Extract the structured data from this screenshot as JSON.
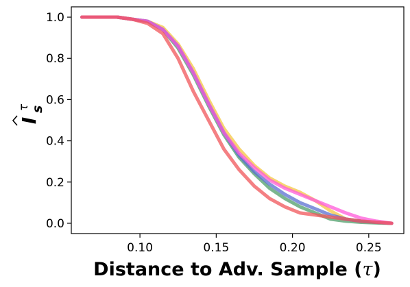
{
  "chart_data": {
    "type": "line",
    "title": "",
    "xlabel": "Distance to Adv. Sample (",
    "xlabel_symbol": "τ",
    "xlabel_close": ")",
    "ylabel_main": "I",
    "ylabel_sub": "s",
    "ylabel_sup": "τ",
    "xlim": [
      0.055,
      0.273
    ],
    "ylim": [
      -0.05,
      1.05
    ],
    "xticks": [
      0.1,
      0.15,
      0.2,
      0.25
    ],
    "xtick_labels": [
      "0.10",
      "0.15",
      "0.20",
      "0.25"
    ],
    "yticks": [
      0.0,
      0.2,
      0.4,
      0.6,
      0.8,
      1.0
    ],
    "ytick_labels": [
      "0.0",
      "0.2",
      "0.4",
      "0.6",
      "0.8",
      "1.0"
    ],
    "grid": false,
    "series": [
      {
        "color": "#f4c542",
        "x": [
          0.062,
          0.085,
          0.095,
          0.105,
          0.115,
          0.125,
          0.135,
          0.145,
          0.155,
          0.165,
          0.175,
          0.185,
          0.195,
          0.205,
          0.215,
          0.225,
          0.235,
          0.245,
          0.255,
          0.265
        ],
        "y": [
          1.0,
          1.0,
          0.99,
          0.98,
          0.95,
          0.87,
          0.75,
          0.6,
          0.46,
          0.36,
          0.28,
          0.22,
          0.18,
          0.15,
          0.11,
          0.06,
          0.02,
          0.01,
          0.005,
          0.0
        ]
      },
      {
        "color": "#4f9d69",
        "x": [
          0.062,
          0.085,
          0.095,
          0.105,
          0.115,
          0.125,
          0.135,
          0.145,
          0.155,
          0.165,
          0.175,
          0.185,
          0.195,
          0.205,
          0.215,
          0.225,
          0.235,
          0.245,
          0.255,
          0.265
        ],
        "y": [
          1.0,
          1.0,
          0.99,
          0.98,
          0.94,
          0.85,
          0.72,
          0.57,
          0.43,
          0.32,
          0.24,
          0.17,
          0.12,
          0.08,
          0.05,
          0.02,
          0.01,
          0.005,
          0.002,
          0.0
        ]
      },
      {
        "color": "#5a6fd0",
        "x": [
          0.062,
          0.085,
          0.095,
          0.105,
          0.115,
          0.125,
          0.135,
          0.145,
          0.155,
          0.165,
          0.175,
          0.185,
          0.195,
          0.205,
          0.215,
          0.225,
          0.235,
          0.245,
          0.255,
          0.265
        ],
        "y": [
          1.0,
          1.0,
          0.99,
          0.98,
          0.94,
          0.86,
          0.73,
          0.58,
          0.44,
          0.33,
          0.25,
          0.19,
          0.14,
          0.1,
          0.07,
          0.04,
          0.02,
          0.01,
          0.005,
          0.0
        ]
      },
      {
        "color": "#ff5ad9",
        "x": [
          0.062,
          0.085,
          0.095,
          0.105,
          0.115,
          0.125,
          0.135,
          0.145,
          0.155,
          0.165,
          0.175,
          0.185,
          0.195,
          0.205,
          0.215,
          0.225,
          0.235,
          0.245,
          0.255,
          0.265
        ],
        "y": [
          1.0,
          1.0,
          0.99,
          0.98,
          0.94,
          0.86,
          0.73,
          0.58,
          0.44,
          0.34,
          0.27,
          0.21,
          0.17,
          0.14,
          0.11,
          0.08,
          0.05,
          0.025,
          0.01,
          0.0
        ]
      },
      {
        "color": "#f0555a",
        "x": [
          0.062,
          0.085,
          0.095,
          0.105,
          0.115,
          0.125,
          0.135,
          0.145,
          0.155,
          0.165,
          0.175,
          0.185,
          0.195,
          0.205,
          0.215,
          0.225,
          0.235,
          0.245,
          0.255,
          0.265
        ],
        "y": [
          1.0,
          1.0,
          0.99,
          0.97,
          0.92,
          0.8,
          0.64,
          0.5,
          0.36,
          0.26,
          0.18,
          0.12,
          0.08,
          0.05,
          0.04,
          0.03,
          0.02,
          0.01,
          0.005,
          0.0
        ]
      }
    ]
  }
}
